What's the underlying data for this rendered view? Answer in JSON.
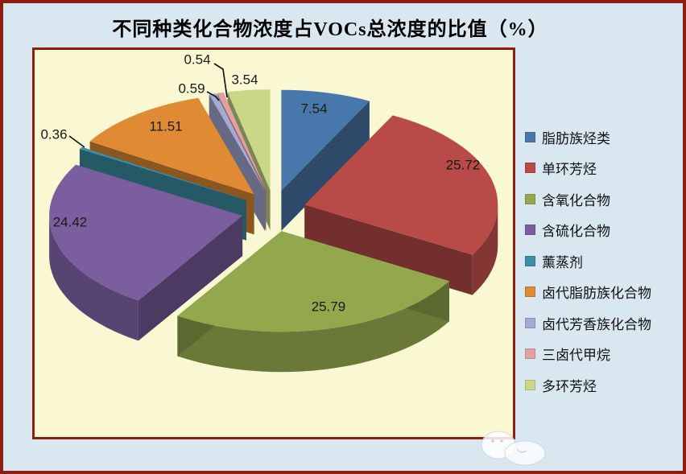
{
  "chart_data": {
    "type": "pie",
    "style": "3d-exploded",
    "title": "不同种类化合物浓度占VOCs总浓度的比值（%）",
    "value_unit": "%",
    "legend_position": "right",
    "data_labels_shown": true,
    "series": [
      {
        "name": "脂肪族烃类",
        "value": 7.54,
        "color": "#4878AB"
      },
      {
        "name": "单环芳烃",
        "value": 25.72,
        "color": "#B84B48"
      },
      {
        "name": "含氧化合物",
        "value": 25.79,
        "color": "#93A84D"
      },
      {
        "name": "含硫化合物",
        "value": 24.42,
        "color": "#7A5E9E"
      },
      {
        "name": "薰蒸剂",
        "value": 0.36,
        "color": "#3C8FA3"
      },
      {
        "name": "卤代脂肪族化合物",
        "value": 11.51,
        "color": "#E08A33"
      },
      {
        "name": "卤代芳香族化合物",
        "value": 0.59,
        "color": "#A5AAD5"
      },
      {
        "name": "三卤代甲烷",
        "value": 0.54,
        "color": "#E2A0A0"
      },
      {
        "name": "多环芳烃",
        "value": 3.54,
        "color": "#C9D787"
      }
    ]
  },
  "colors": {
    "page_background": "#D9E8F0",
    "frame_border": "#8E1D12",
    "plot_background": "#FAF8D2",
    "label_text": "#1A1A1A",
    "title_text": "#000000"
  }
}
